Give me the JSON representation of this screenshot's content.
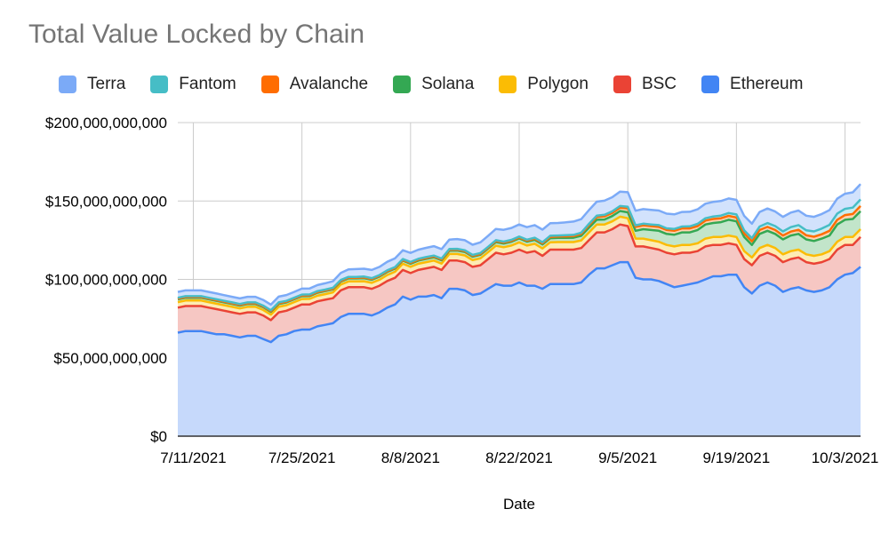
{
  "chart_data": {
    "type": "area",
    "stacked": true,
    "title": "Total Value Locked by Chain",
    "xlabel": "Date",
    "ylabel": "",
    "ylim": [
      0,
      200000000000
    ],
    "y_ticks": [
      0,
      50000000000,
      100000000000,
      150000000000,
      200000000000
    ],
    "y_tick_labels": [
      "$0",
      "$50,000,000,000",
      "$100,000,000,000",
      "$150,000,000,000",
      "$200,000,000,000"
    ],
    "x_tick_labels": [
      "7/11/2021",
      "7/25/2021",
      "8/8/2021",
      "8/22/2021",
      "9/5/2021",
      "9/19/2021",
      "10/3/2021"
    ],
    "x_range": [
      "7/9/2021",
      "10/5/2021"
    ],
    "grid": true,
    "legend_position": "top",
    "x": [
      "7/9/2021",
      "7/10/2021",
      "7/11/2021",
      "7/12/2021",
      "7/13/2021",
      "7/14/2021",
      "7/15/2021",
      "7/16/2021",
      "7/17/2021",
      "7/18/2021",
      "7/19/2021",
      "7/20/2021",
      "7/21/2021",
      "7/22/2021",
      "7/23/2021",
      "7/24/2021",
      "7/25/2021",
      "7/26/2021",
      "7/27/2021",
      "7/28/2021",
      "7/29/2021",
      "7/30/2021",
      "7/31/2021",
      "8/1/2021",
      "8/2/2021",
      "8/3/2021",
      "8/4/2021",
      "8/5/2021",
      "8/6/2021",
      "8/7/2021",
      "8/8/2021",
      "8/9/2021",
      "8/10/2021",
      "8/11/2021",
      "8/12/2021",
      "8/13/2021",
      "8/14/2021",
      "8/15/2021",
      "8/16/2021",
      "8/17/2021",
      "8/18/2021",
      "8/19/2021",
      "8/20/2021",
      "8/21/2021",
      "8/22/2021",
      "8/23/2021",
      "8/24/2021",
      "8/25/2021",
      "8/26/2021",
      "8/27/2021",
      "8/28/2021",
      "8/29/2021",
      "8/30/2021",
      "8/31/2021",
      "9/1/2021",
      "9/2/2021",
      "9/3/2021",
      "9/4/2021",
      "9/5/2021",
      "9/6/2021",
      "9/7/2021",
      "9/8/2021",
      "9/9/2021",
      "9/10/2021",
      "9/11/2021",
      "9/12/2021",
      "9/13/2021",
      "9/14/2021",
      "9/15/2021",
      "9/16/2021",
      "9/17/2021",
      "9/18/2021",
      "9/19/2021",
      "9/20/2021",
      "9/21/2021",
      "9/22/2021",
      "9/23/2021",
      "9/24/2021",
      "9/25/2021",
      "9/26/2021",
      "9/27/2021",
      "9/28/2021",
      "9/29/2021",
      "9/30/2021",
      "10/1/2021",
      "10/2/2021",
      "10/3/2021",
      "10/4/2021",
      "10/5/2021"
    ],
    "series": [
      {
        "name": "Ethereum",
        "line_color": "#4285f4",
        "fill_color": "#c6d9fb",
        "values": [
          66,
          67,
          67,
          67,
          66,
          65,
          65,
          64,
          63,
          64,
          64,
          62,
          60,
          64,
          65,
          67,
          68,
          68,
          70,
          71,
          72,
          76,
          78,
          78,
          78,
          77,
          79,
          82,
          84,
          89,
          87,
          89,
          89,
          90,
          88,
          94,
          94,
          93,
          90,
          91,
          94,
          97,
          96,
          96,
          98,
          96,
          96,
          94,
          97,
          97,
          97,
          97,
          98,
          103,
          107,
          107,
          109,
          111,
          111,
          101,
          100,
          100,
          99,
          97,
          95,
          96,
          97,
          98,
          100,
          102,
          102,
          103,
          103,
          95,
          91,
          96,
          98,
          96,
          92,
          94,
          95,
          93,
          92,
          93,
          95,
          100,
          103,
          104,
          108
        ]
      },
      {
        "name": "BSC",
        "line_color": "#ea4335",
        "fill_color": "#f6c7c3",
        "values": [
          16,
          16,
          16,
          16,
          16,
          16,
          15,
          15,
          15,
          15,
          15,
          15,
          14,
          15,
          15,
          15,
          16,
          16,
          16,
          16,
          16,
          17,
          17,
          17,
          17,
          17,
          17,
          17,
          17,
          17,
          17,
          17,
          18,
          18,
          18,
          18,
          18,
          18,
          18,
          18,
          19,
          20,
          20,
          21,
          21,
          21,
          22,
          21,
          22,
          22,
          22,
          22,
          22,
          22,
          23,
          23,
          23,
          24,
          23,
          20,
          21,
          20,
          20,
          20,
          21,
          21,
          20,
          20,
          21,
          20,
          20,
          20,
          19,
          18,
          18,
          19,
          19,
          19,
          19,
          19,
          19,
          18,
          18,
          18,
          18,
          19,
          19,
          18,
          19
        ]
      },
      {
        "name": "Polygon",
        "line_color": "#fbbc04",
        "fill_color": "#fdecb4",
        "values": [
          3.5,
          3.5,
          3.5,
          3.5,
          3.5,
          3.5,
          3.5,
          3.5,
          3.5,
          3.5,
          3.5,
          3.5,
          3.5,
          3.5,
          3.5,
          3.5,
          3.5,
          3.6,
          3.6,
          3.6,
          3.7,
          3.7,
          3.7,
          3.7,
          3.8,
          3.8,
          3.8,
          3.8,
          3.9,
          4,
          4,
          4,
          4,
          4,
          4.1,
          4.2,
          4.2,
          4.3,
          4.3,
          4.4,
          4.4,
          4.5,
          4.5,
          4.6,
          4.6,
          4.6,
          4.7,
          4.7,
          4.7,
          4.8,
          4.8,
          4.8,
          4.9,
          5,
          5,
          5,
          5,
          5,
          5,
          5,
          5,
          5,
          5,
          5,
          5,
          5,
          5,
          5,
          5,
          5,
          5,
          5,
          5,
          5,
          5,
          5,
          5,
          5,
          5,
          5,
          5,
          5,
          5,
          5,
          5,
          5,
          5,
          5,
          5
        ]
      },
      {
        "name": "Solana",
        "line_color": "#34a853",
        "fill_color": "#c2e5ca",
        "values": [
          1.8,
          1.8,
          1.8,
          1.8,
          1.8,
          1.8,
          1.8,
          1.8,
          1.8,
          1.8,
          1.8,
          1.8,
          1.8,
          1.8,
          1.8,
          1.8,
          1.8,
          1.8,
          1.9,
          1.9,
          1.9,
          1.9,
          1.9,
          1.9,
          2,
          2,
          2,
          2,
          2,
          2,
          2,
          2,
          2.1,
          2.1,
          2.1,
          2.1,
          2.2,
          2.2,
          2.2,
          2.3,
          2.3,
          2.3,
          2.4,
          2.4,
          2.5,
          2.5,
          2.5,
          2.6,
          2.6,
          2.7,
          2.7,
          2.8,
          2.9,
          3,
          3,
          3.2,
          3.4,
          3.6,
          3.8,
          5,
          6,
          6.5,
          7,
          7,
          7.5,
          8,
          8,
          8.5,
          9,
          9,
          9.5,
          10,
          10,
          9,
          8,
          9,
          9,
          9,
          9.5,
          10,
          10,
          9.5,
          9.5,
          10,
          10,
          11,
          11,
          11.5,
          11.5
        ]
      },
      {
        "name": "Avalanche",
        "line_color": "#ff6d01",
        "fill_color": "#ffd3b3",
        "values": [
          0.4,
          0.4,
          0.4,
          0.4,
          0.4,
          0.4,
          0.4,
          0.4,
          0.4,
          0.4,
          0.4,
          0.4,
          0.4,
          0.4,
          0.4,
          0.4,
          0.4,
          0.4,
          0.4,
          0.4,
          0.4,
          0.4,
          0.4,
          0.4,
          0.4,
          0.4,
          0.4,
          0.4,
          0.4,
          0.4,
          0.5,
          0.5,
          0.5,
          0.5,
          0.5,
          0.5,
          0.5,
          0.5,
          0.5,
          0.5,
          0.5,
          0.6,
          0.6,
          0.6,
          0.6,
          0.6,
          0.7,
          0.7,
          0.8,
          0.8,
          0.9,
          1,
          1.2,
          1.5,
          1.8,
          2,
          2,
          2.2,
          2.5,
          2.5,
          2.5,
          2.5,
          2.5,
          2.5,
          2.5,
          2.5,
          2.5,
          2.5,
          2.5,
          2.5,
          2.5,
          2.5,
          2.5,
          2.3,
          2.3,
          2.5,
          2.5,
          2.5,
          2.5,
          2.5,
          2.6,
          2.6,
          2.7,
          2.8,
          3,
          3,
          3,
          3.2,
          3.3
        ]
      },
      {
        "name": "Fantom",
        "line_color": "#46bdc6",
        "fill_color": "#c8ecef",
        "values": [
          0.6,
          0.6,
          0.6,
          0.6,
          0.6,
          0.6,
          0.6,
          0.6,
          0.6,
          0.6,
          0.6,
          0.6,
          0.6,
          0.6,
          0.6,
          0.6,
          0.6,
          0.6,
          0.6,
          0.6,
          0.6,
          0.6,
          0.6,
          0.6,
          0.6,
          0.6,
          0.6,
          0.6,
          0.6,
          0.6,
          0.6,
          0.6,
          0.6,
          0.6,
          0.6,
          0.6,
          0.6,
          0.6,
          0.6,
          0.6,
          0.6,
          0.6,
          0.6,
          0.6,
          0.6,
          0.6,
          0.7,
          0.7,
          0.7,
          0.7,
          0.8,
          0.8,
          0.8,
          0.9,
          0.9,
          1,
          1,
          1,
          1,
          1,
          1,
          1,
          1.1,
          1.1,
          1.2,
          1.2,
          1.3,
          1.4,
          1.5,
          1.6,
          1.7,
          1.8,
          1.9,
          2,
          2,
          2.2,
          2.4,
          2.5,
          2.6,
          2.8,
          3,
          3.2,
          3.4,
          3.6,
          3.8,
          4,
          4,
          4.1,
          4.2
        ]
      },
      {
        "name": "Terra",
        "line_color": "#7baaf7",
        "fill_color": "#d2e2fc",
        "values": [
          3.7,
          3.7,
          3.7,
          3.7,
          3.7,
          3.7,
          3.6,
          3.6,
          3.6,
          3.6,
          3.6,
          3.6,
          3.6,
          3.7,
          3.7,
          3.7,
          3.8,
          3.8,
          3.9,
          4,
          4.2,
          4.5,
          4.8,
          5,
          5,
          5.2,
          5.2,
          5.4,
          5.5,
          5.6,
          5.8,
          5.8,
          5.9,
          6,
          6,
          6,
          6.2,
          6.4,
          6.5,
          6.8,
          7,
          7.2,
          7.5,
          7.6,
          7.7,
          8,
          8,
          8,
          8,
          8,
          8.2,
          8.5,
          8.6,
          8.8,
          8.9,
          9,
          9,
          9.2,
          9.3,
          9.3,
          9.3,
          9.3,
          9.3,
          9.3,
          9.3,
          9.3,
          9.3,
          9.3,
          9.3,
          9.3,
          9.3,
          9.3,
          9.3,
          9.2,
          9.2,
          9.3,
          9.3,
          9.3,
          9.3,
          9.3,
          9.3,
          9.3,
          9.3,
          9.3,
          9.4,
          9.5,
          9.6,
          9.7,
          9.8
        ]
      }
    ],
    "value_unit": "billions USD"
  }
}
